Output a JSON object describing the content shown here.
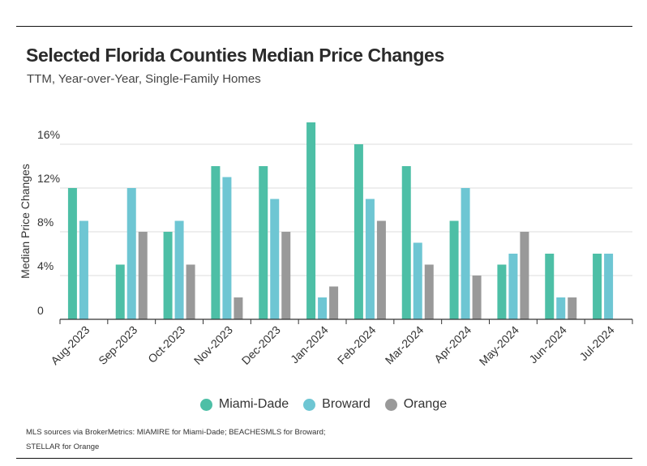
{
  "header": {
    "title": "Selected Florida Counties Median Price Changes",
    "subtitle": "TTM, Year-over-Year, Single-Family Homes"
  },
  "footer": {
    "source_line1": "MLS sources via BrokerMetrics: MIAMIRE for Miami-Dade; BEACHESMLS for Broward;",
    "source_line2": "STELLAR for Orange"
  },
  "chart_data": {
    "type": "bar",
    "title": "Selected Florida Counties Median Price Changes",
    "subtitle": "TTM, Year-over-Year, Single-Family Homes",
    "xlabel": "",
    "ylabel": "Median Price Changes",
    "ylim": [
      0,
      18
    ],
    "yticks": [
      0,
      4,
      8,
      12,
      16
    ],
    "ytick_labels": [
      "0",
      "4%",
      "8%",
      "12%",
      "16%"
    ],
    "grid": true,
    "legend_position": "bottom-center",
    "categories": [
      "Aug-2023",
      "Sep-2023",
      "Oct-2023",
      "Nov-2023",
      "Dec-2023",
      "Jan-2024",
      "Feb-2024",
      "Mar-2024",
      "Apr-2024",
      "May-2024",
      "Jun-2024",
      "Jul-2024"
    ],
    "series": [
      {
        "name": "Miami-Dade",
        "color": "#4dbfa6",
        "values": [
          12,
          5,
          8,
          14,
          14,
          18,
          16,
          14,
          9,
          5,
          6,
          6
        ]
      },
      {
        "name": "Broward",
        "color": "#6ec6d3",
        "values": [
          9,
          12,
          9,
          13,
          11,
          2,
          11,
          7,
          12,
          6,
          2,
          6
        ]
      },
      {
        "name": "Orange",
        "color": "#999999",
        "values": [
          null,
          8,
          5,
          2,
          8,
          3,
          9,
          5,
          4,
          8,
          2,
          null
        ]
      }
    ]
  }
}
